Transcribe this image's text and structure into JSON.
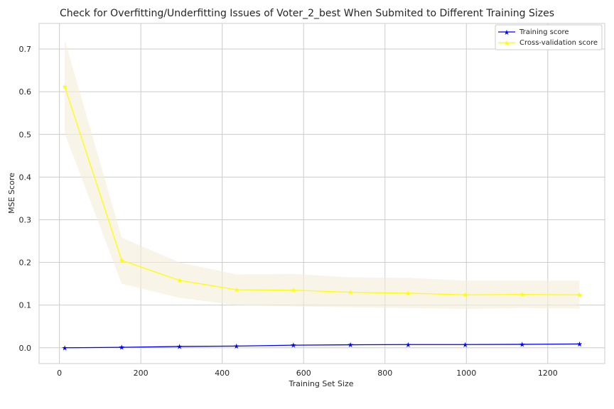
{
  "chart_data": {
    "type": "line",
    "title": "Check for Overfitting/Underfitting Issues of Voter_2_best When Submited to Different Training Sizes",
    "xlabel": "Training Set Size",
    "ylabel": "MSE Score",
    "xlim": [
      -50,
      1340
    ],
    "ylim": [
      -0.037,
      0.76
    ],
    "x_ticks": [
      0,
      200,
      400,
      600,
      800,
      1000,
      1200
    ],
    "y_ticks": [
      0.0,
      0.1,
      0.2,
      0.3,
      0.4,
      0.5,
      0.6,
      0.7
    ],
    "y_tick_labels": [
      "0.0",
      "0.1",
      "0.2",
      "0.3",
      "0.4",
      "0.5",
      "0.6",
      "0.7"
    ],
    "grid": true,
    "legend_position": "top-right",
    "x": [
      13,
      153,
      295,
      435,
      575,
      715,
      857,
      997,
      1137,
      1278
    ],
    "series": [
      {
        "name": "Training score",
        "color": "#0000ff",
        "marker": "star",
        "values": [
          0.0,
          0.001,
          0.003,
          0.004,
          0.006,
          0.007,
          0.0075,
          0.0075,
          0.008,
          0.009
        ]
      },
      {
        "name": "Cross-validation score",
        "color": "#ffff00",
        "marker": "star",
        "values": [
          0.612,
          0.205,
          0.158,
          0.136,
          0.135,
          0.13,
          0.128,
          0.124,
          0.125,
          0.124
        ],
        "band_upper": [
          0.722,
          0.258,
          0.2,
          0.172,
          0.173,
          0.165,
          0.164,
          0.157,
          0.157,
          0.157
        ],
        "band_lower": [
          0.502,
          0.15,
          0.117,
          0.1,
          0.097,
          0.095,
          0.093,
          0.091,
          0.093,
          0.092
        ],
        "band_color": "#f5ecd8"
      }
    ]
  }
}
